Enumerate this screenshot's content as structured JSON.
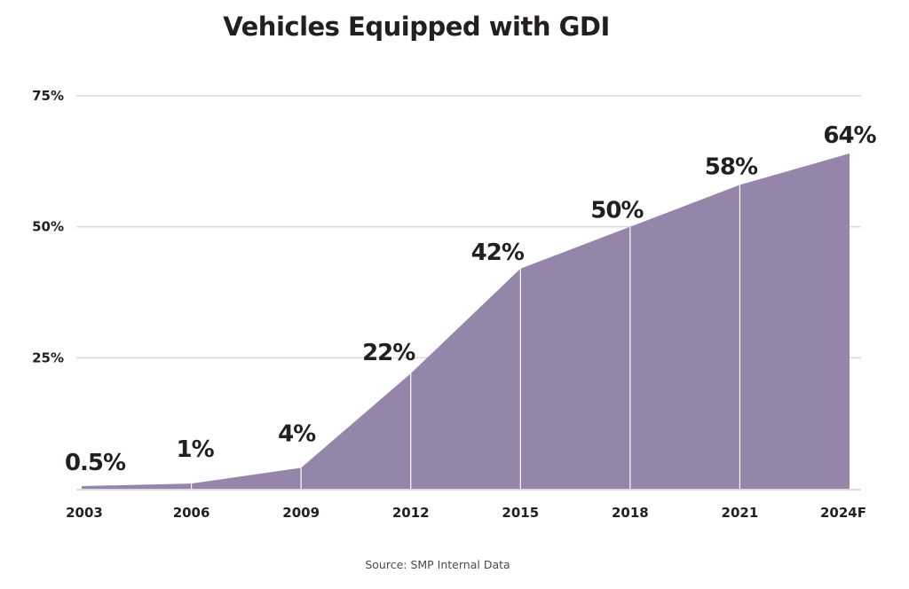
{
  "chart_data": {
    "type": "area",
    "title": "Vehicles Equipped with GDI",
    "xlabel": "",
    "ylabel": "",
    "categories": [
      "2003",
      "2006",
      "2009",
      "2012",
      "2015",
      "2018",
      "2021",
      "2024F"
    ],
    "series": [
      {
        "name": "Vehicles Equipped with GDI",
        "values": [
          0.5,
          1,
          4,
          22,
          42,
          50,
          58,
          64
        ],
        "labels": [
          "0.5%",
          "1%",
          "4%",
          "22%",
          "42%",
          "50%",
          "58%",
          "64%"
        ],
        "color": "#9585a9"
      }
    ],
    "ylim": [
      0,
      75
    ],
    "yticks": [
      {
        "value": 25,
        "label": "25%"
      },
      {
        "value": 50,
        "label": "50%"
      },
      {
        "value": 75,
        "label": "75%"
      }
    ],
    "grid": true,
    "legend": "none",
    "source": "Source: SMP Internal Data"
  },
  "colors": {
    "area": "#9585a9",
    "grid": "#d9d9de",
    "text": "#231f20",
    "divider": "#ffffff"
  }
}
